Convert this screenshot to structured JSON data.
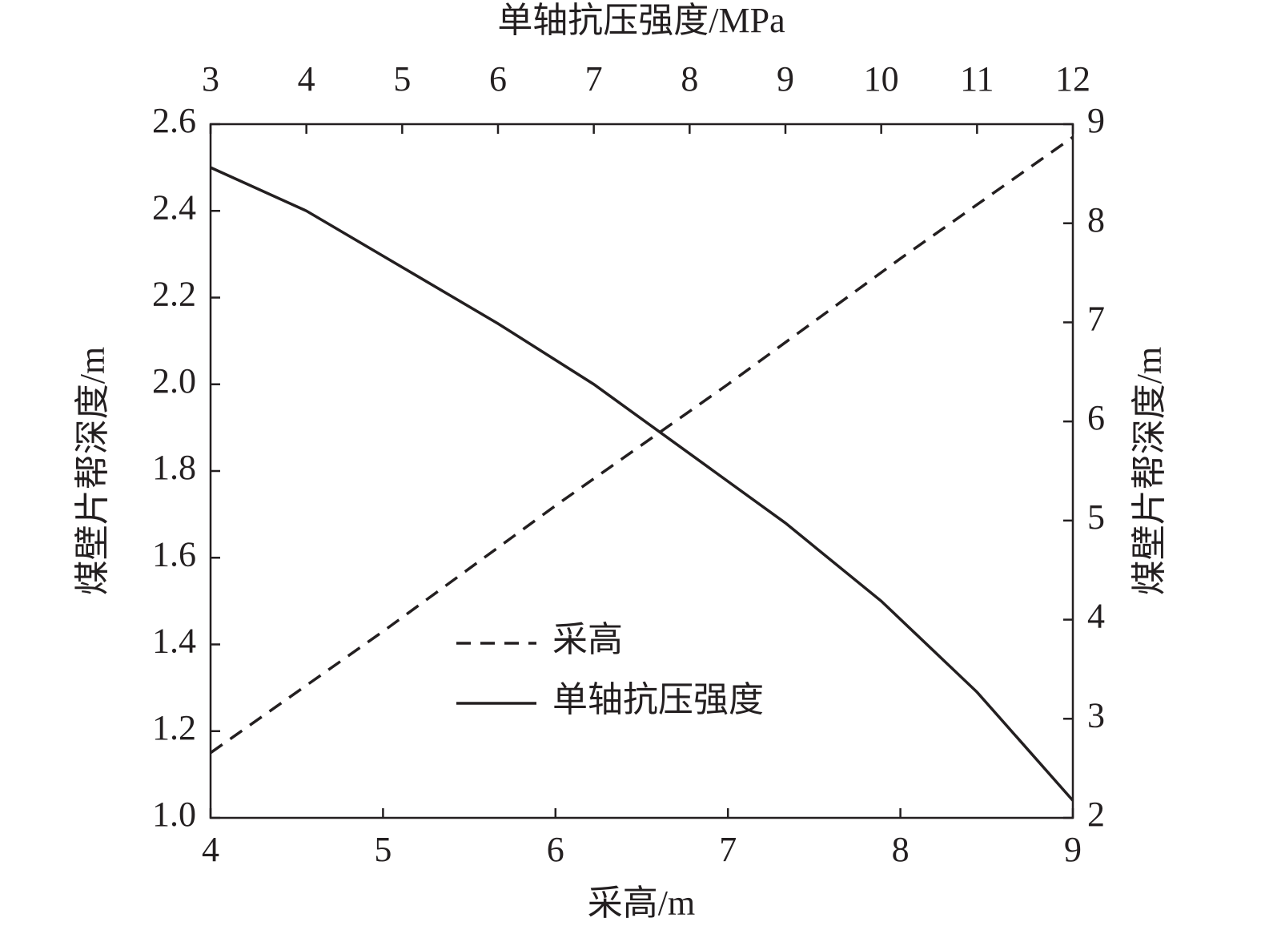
{
  "chart_data": {
    "type": "line",
    "xlabel": "采高/m",
    "x2label": "单轴抗压强度/MPa",
    "ylabel": "煤壁片帮深度/m",
    "y2label": "煤壁片帮深度/m",
    "xlim": [
      4,
      9
    ],
    "xticks": [
      4,
      5,
      6,
      7,
      8,
      9
    ],
    "x2lim": [
      3,
      12
    ],
    "x2ticks": [
      3,
      4,
      5,
      6,
      7,
      8,
      9,
      10,
      11,
      12
    ],
    "ylim": [
      1.0,
      2.6
    ],
    "yticks": [
      {
        "value": 1.0,
        "label": "1.0"
      },
      1.2,
      1.4,
      1.6,
      1.8,
      {
        "value": 2.0,
        "label": "2.0"
      },
      2.2,
      2.4,
      2.6
    ],
    "y2lim": [
      2,
      9
    ],
    "y2ticks": [
      2,
      3,
      4,
      5,
      6,
      7,
      8,
      9
    ],
    "series": [
      {
        "name": "采高",
        "color": "#231f20",
        "dash": true,
        "xaxis": "x",
        "x": [
          4,
          5,
          6,
          7,
          8,
          9
        ],
        "values": [
          1.15,
          1.43,
          1.72,
          2.0,
          2.29,
          2.57
        ]
      },
      {
        "name": "单轴抗压强度",
        "color": "#231f20",
        "dash": false,
        "xaxis": "x2",
        "x": [
          3,
          4,
          5,
          6,
          7,
          8,
          9,
          10,
          11,
          12
        ],
        "values": [
          2.5,
          2.4,
          2.27,
          2.14,
          2.0,
          1.84,
          1.68,
          1.5,
          1.29,
          1.04
        ]
      }
    ]
  }
}
